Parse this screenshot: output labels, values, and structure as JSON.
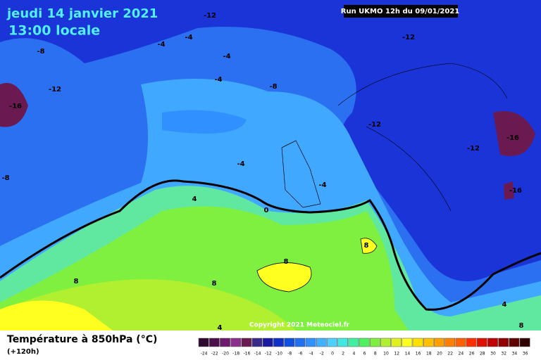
{
  "header": {
    "title": "jeudi 14 janvier 2021",
    "subtitle": "13:00 locale",
    "run": "Run UKMO 12h du 09/01/2021"
  },
  "map": {
    "copyright": "Copyright 2021 Meteociel.fr",
    "contour_labels": [
      -12,
      -4,
      -4,
      -8,
      -4,
      -12,
      -4,
      -8,
      -16,
      -12,
      -12,
      -12,
      -16,
      -16,
      -8,
      -4,
      -4,
      0,
      4,
      8,
      8,
      8,
      8,
      4,
      8,
      4
    ]
  },
  "legend": {
    "title": "Température à 850hPa (°C)",
    "lead": "(+120h)",
    "ticks": [
      -24,
      -22,
      -20,
      -18,
      -16,
      -14,
      -12,
      -10,
      -8,
      -6,
      -4,
      -2,
      0,
      2,
      4,
      6,
      8,
      10,
      12,
      14,
      16,
      18,
      20,
      22,
      24,
      26,
      28,
      30,
      32,
      34,
      36
    ],
    "colors": [
      "#2e0a2e",
      "#4b0f4b",
      "#6e1a6e",
      "#8c2e8c",
      "#6a1a50",
      "#3a2a8a",
      "#1a1aa0",
      "#1030c8",
      "#1050e0",
      "#2070f0",
      "#3090ff",
      "#40b0ff",
      "#50d0ff",
      "#40e8e0",
      "#40f0a0",
      "#50f060",
      "#80f040",
      "#b0f030",
      "#e0f020",
      "#ffff20",
      "#ffe000",
      "#ffc000",
      "#ffa000",
      "#ff8000",
      "#ff6000",
      "#ff3000",
      "#e01000",
      "#c00000",
      "#900000",
      "#600000",
      "#300000"
    ]
  }
}
